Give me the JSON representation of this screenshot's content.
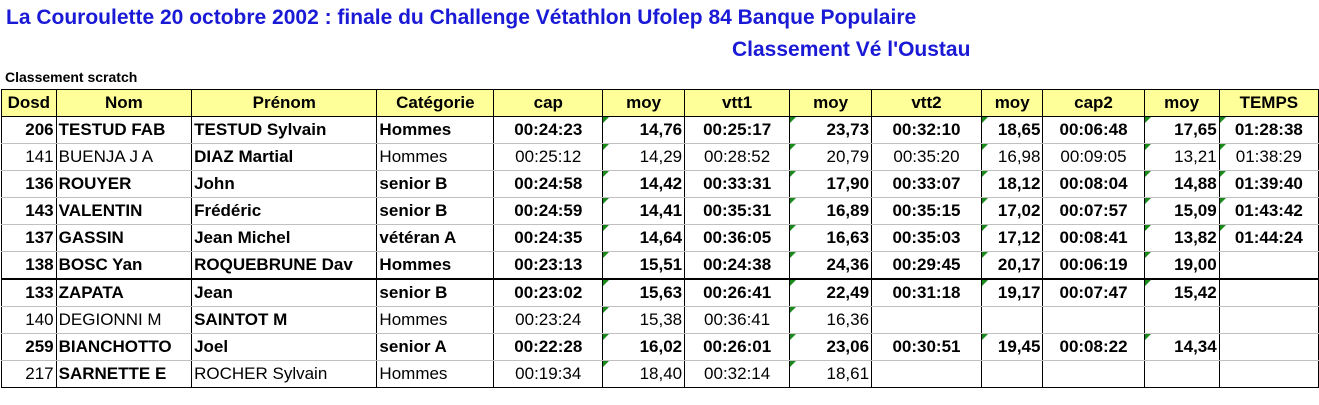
{
  "title": "La Couroulette 20 octobre 2002 : finale du Challenge Vétathlon Ufolep 84 Banque Populaire",
  "subtitle2": "Classement Vé l'Oustau",
  "section": "Classement scratch",
  "headers": [
    "Dosd",
    "Nom",
    "Prénom",
    "Catégorie",
    "cap",
    "moy",
    "vtt1",
    "moy",
    "vtt2",
    "moy",
    "cap2",
    "moy",
    "TEMPS"
  ],
  "rows": [
    {
      "dosd": "206",
      "nom": "TESTUD FAB",
      "prenom": "TESTUD Sylvain",
      "cat": "Hommes",
      "cap": "00:24:23",
      "moy1": "14,76",
      "vtt1": "00:25:17",
      "moy2": "23,73",
      "vtt2": "00:32:10",
      "moy3": "18,65",
      "cap2": "00:06:48",
      "moy4": "17,65",
      "temps": "01:28:38"
    },
    {
      "dosd": "141",
      "nom": "BUENJA J A",
      "prenom": "DIAZ Martial",
      "cat": "Hommes",
      "cap": "00:25:12",
      "moy1": "14,29",
      "vtt1": "00:28:52",
      "moy2": "20,79",
      "vtt2": "00:35:20",
      "moy3": "16,98",
      "cap2": "00:09:05",
      "moy4": "13,21",
      "temps": "01:38:29"
    },
    {
      "dosd": "136",
      "nom": "ROUYER",
      "prenom": "John",
      "cat": "senior B",
      "cap": "00:24:58",
      "moy1": "14,42",
      "vtt1": "00:33:31",
      "moy2": "17,90",
      "vtt2": "00:33:07",
      "moy3": "18,12",
      "cap2": "00:08:04",
      "moy4": "14,88",
      "temps": "01:39:40"
    },
    {
      "dosd": "143",
      "nom": "VALENTIN",
      "prenom": "Frédéric",
      "cat": "senior B",
      "cap": "00:24:59",
      "moy1": "14,41",
      "vtt1": "00:35:31",
      "moy2": "16,89",
      "vtt2": "00:35:15",
      "moy3": "17,02",
      "cap2": "00:07:57",
      "moy4": "15,09",
      "temps": "01:43:42"
    },
    {
      "dosd": "137",
      "nom": "GASSIN",
      "prenom": "Jean Michel",
      "cat": "vétéran A",
      "cap": "00:24:35",
      "moy1": "14,64",
      "vtt1": "00:36:05",
      "moy2": "16,63",
      "vtt2": "00:35:03",
      "moy3": "17,12",
      "cap2": "00:08:41",
      "moy4": "13,82",
      "temps": "01:44:24"
    },
    {
      "dosd": "138",
      "nom": "BOSC Yan",
      "prenom": "ROQUEBRUNE Dav",
      "cat": "Hommes",
      "cap": "00:23:13",
      "moy1": "15,51",
      "vtt1": "00:24:38",
      "moy2": "24,36",
      "vtt2": "00:29:45",
      "moy3": "20,17",
      "cap2": "00:06:19",
      "moy4": "19,00",
      "temps": ""
    },
    {
      "dosd": "133",
      "nom": "ZAPATA",
      "prenom": "Jean",
      "cat": "senior B",
      "cap": "00:23:02",
      "moy1": "15,63",
      "vtt1": "00:26:41",
      "moy2": "22,49",
      "vtt2": "00:31:18",
      "moy3": "19,17",
      "cap2": "00:07:47",
      "moy4": "15,42",
      "temps": ""
    },
    {
      "dosd": "140",
      "nom": "DEGIONNI M",
      "prenom": "SAINTOT M",
      "cat": "Hommes",
      "cap": "00:23:24",
      "moy1": "15,38",
      "vtt1": "00:36:41",
      "moy2": "16,36",
      "vtt2": "",
      "moy3": "",
      "cap2": "",
      "moy4": "",
      "temps": ""
    },
    {
      "dosd": "259",
      "nom": "BIANCHOTTO",
      "prenom": "Joel",
      "cat": "senior A",
      "cap": "00:22:28",
      "moy1": "16,02",
      "vtt1": "00:26:01",
      "moy2": "23,06",
      "vtt2": "00:30:51",
      "moy3": "19,45",
      "cap2": "00:08:22",
      "moy4": "14,34",
      "temps": ""
    },
    {
      "dosd": "217",
      "nom": "SARNETTE E",
      "prenom": "ROCHER Sylvain",
      "cat": "Hommes",
      "cap": "00:19:34",
      "moy1": "18,40",
      "vtt1": "00:32:14",
      "moy2": "18,61",
      "vtt2": "",
      "moy3": "",
      "cap2": "",
      "moy4": "",
      "temps": ""
    }
  ]
}
